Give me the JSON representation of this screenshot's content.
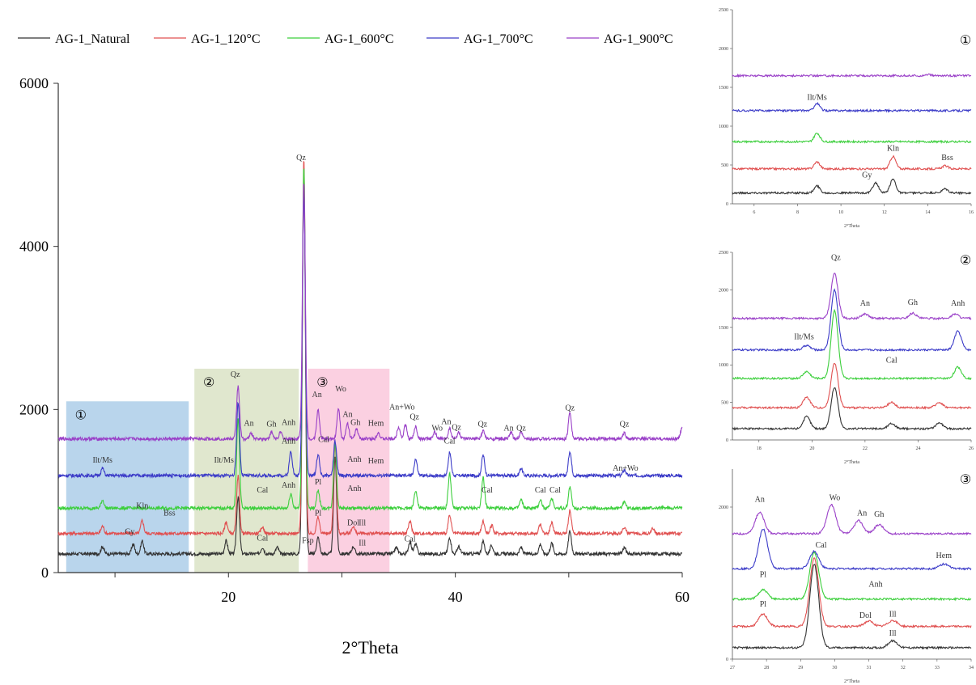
{
  "chart_data": [
    {
      "id": "main",
      "type": "line",
      "xlabel": "2°Theta",
      "ylabel": "",
      "xlim": [
        5,
        60
      ],
      "ylim": [
        0,
        6000
      ],
      "xticks": [
        20,
        40,
        60
      ],
      "yticks": [
        0,
        2000,
        4000,
        6000
      ],
      "legend_position": "top",
      "series": [
        {
          "name": "AG-1_Natural",
          "color": "#333333",
          "baseline": 230
        },
        {
          "name": "AG-1_120°C",
          "color": "#e05050",
          "baseline": 480
        },
        {
          "name": "AG-1_600°C",
          "color": "#3ccf3c",
          "baseline": 790
        },
        {
          "name": "AG-1_700°C",
          "color": "#3c3cc8",
          "baseline": 1190
        },
        {
          "name": "AG-1_900°C",
          "color": "#9a40c8",
          "baseline": 1640
        }
      ],
      "peaks": {
        "AG-1_Natural": [
          [
            8.9,
            90
          ],
          [
            11.6,
            120
          ],
          [
            12.4,
            160
          ],
          [
            19.8,
            160
          ],
          [
            20.85,
            700
          ],
          [
            23.0,
            80
          ],
          [
            24.3,
            80
          ],
          [
            26.65,
            4650
          ],
          [
            27.9,
            200
          ],
          [
            29.4,
            1200
          ],
          [
            31.0,
            90
          ],
          [
            34.8,
            80
          ],
          [
            36.0,
            150
          ],
          [
            36.5,
            120
          ],
          [
            39.5,
            200
          ],
          [
            40.3,
            90
          ],
          [
            42.45,
            150
          ],
          [
            43.2,
            100
          ],
          [
            45.8,
            80
          ],
          [
            47.5,
            120
          ],
          [
            48.5,
            130
          ],
          [
            50.1,
            280
          ],
          [
            54.9,
            80
          ]
        ],
        "AG-1_120°C": [
          [
            8.9,
            90
          ],
          [
            12.4,
            160
          ],
          [
            19.8,
            140
          ],
          [
            20.85,
            700
          ],
          [
            23.0,
            80
          ],
          [
            26.65,
            4600
          ],
          [
            27.9,
            200
          ],
          [
            29.4,
            1100
          ],
          [
            31.0,
            90
          ],
          [
            36.0,
            150
          ],
          [
            39.5,
            220
          ],
          [
            42.45,
            150
          ],
          [
            43.2,
            100
          ],
          [
            47.5,
            110
          ],
          [
            48.5,
            130
          ],
          [
            50.1,
            280
          ],
          [
            54.9,
            80
          ],
          [
            57.4,
            70
          ]
        ],
        "AG-1_600°C": [
          [
            8.9,
            100
          ],
          [
            20.85,
            1100
          ],
          [
            25.5,
            180
          ],
          [
            26.65,
            4200
          ],
          [
            27.9,
            220
          ],
          [
            29.4,
            800
          ],
          [
            36.5,
            220
          ],
          [
            39.5,
            420
          ],
          [
            42.45,
            380
          ],
          [
            45.8,
            100
          ],
          [
            47.5,
            100
          ],
          [
            48.5,
            120
          ],
          [
            50.1,
            260
          ],
          [
            54.9,
            80
          ]
        ],
        "AG-1_700°C": [
          [
            8.9,
            90
          ],
          [
            20.85,
            900
          ],
          [
            25.5,
            300
          ],
          [
            26.65,
            3500
          ],
          [
            27.9,
            260
          ],
          [
            29.4,
            420
          ],
          [
            36.5,
            200
          ],
          [
            39.5,
            280
          ],
          [
            42.45,
            250
          ],
          [
            45.8,
            90
          ],
          [
            50.1,
            300
          ],
          [
            54.9,
            70
          ]
        ],
        "AG-1_900°C": [
          [
            20.85,
            650
          ],
          [
            22.0,
            70
          ],
          [
            23.8,
            80
          ],
          [
            24.6,
            80
          ],
          [
            26.65,
            3150
          ],
          [
            27.9,
            350
          ],
          [
            29.7,
            380
          ],
          [
            30.5,
            190
          ],
          [
            31.3,
            120
          ],
          [
            33.2,
            80
          ],
          [
            35.0,
            150
          ],
          [
            35.6,
            170
          ],
          [
            36.5,
            150
          ],
          [
            38.2,
            80
          ],
          [
            39.5,
            130
          ],
          [
            40.3,
            80
          ],
          [
            42.45,
            100
          ],
          [
            44.9,
            80
          ],
          [
            45.8,
            80
          ],
          [
            50.1,
            330
          ],
          [
            54.9,
            70
          ],
          [
            60.0,
            150
          ]
        ]
      },
      "shaded_regions": [
        {
          "label": "①",
          "x": [
            5.7,
            16.5
          ],
          "y": [
            0,
            2100
          ],
          "color": "#7fb3dc"
        },
        {
          "label": "②",
          "x": [
            17.0,
            26.2
          ],
          "y": [
            0,
            2500
          ],
          "color": "#c7d3a6"
        },
        {
          "label": "③",
          "x": [
            27.0,
            34.2
          ],
          "y": [
            0,
            2500
          ],
          "color": "#f7a9c8"
        }
      ],
      "annotations": [
        {
          "text": "Qz",
          "x": 26.4,
          "y": 5060
        },
        {
          "text": "Qz",
          "x": 20.6,
          "y": 2400
        },
        {
          "text": "An",
          "x": 21.8,
          "y": 1800
        },
        {
          "text": "Gh",
          "x": 23.8,
          "y": 1790
        },
        {
          "text": "Anh",
          "x": 25.3,
          "y": 1810
        },
        {
          "text": "An",
          "x": 27.8,
          "y": 2150
        },
        {
          "text": "Wo",
          "x": 29.9,
          "y": 2220
        },
        {
          "text": "An",
          "x": 30.5,
          "y": 1910
        },
        {
          "text": "Gh",
          "x": 31.2,
          "y": 1810
        },
        {
          "text": "Hem",
          "x": 33.0,
          "y": 1800
        },
        {
          "text": "An+Wo",
          "x": 35.3,
          "y": 2000
        },
        {
          "text": "Qz",
          "x": 36.4,
          "y": 1880
        },
        {
          "text": "Wo",
          "x": 38.4,
          "y": 1740
        },
        {
          "text": "An",
          "x": 39.2,
          "y": 1820
        },
        {
          "text": "Qz",
          "x": 40.1,
          "y": 1750
        },
        {
          "text": "Qz",
          "x": 42.4,
          "y": 1790
        },
        {
          "text": "An",
          "x": 44.7,
          "y": 1740
        },
        {
          "text": "Qz",
          "x": 45.8,
          "y": 1740
        },
        {
          "text": "Qz",
          "x": 50.1,
          "y": 1990
        },
        {
          "text": "Qz",
          "x": 54.9,
          "y": 1790
        },
        {
          "text": "Ilt/Ms",
          "x": 8.9,
          "y": 1350
        },
        {
          "text": "Ilt/Ms",
          "x": 19.6,
          "y": 1350
        },
        {
          "text": "Anh",
          "x": 25.3,
          "y": 1580
        },
        {
          "text": "Cal",
          "x": 28.4,
          "y": 1600
        },
        {
          "text": "Anh",
          "x": 31.1,
          "y": 1360
        },
        {
          "text": "Hem",
          "x": 33.0,
          "y": 1340
        },
        {
          "text": "Cal",
          "x": 39.5,
          "y": 1580
        },
        {
          "text": "An+Wo",
          "x": 55.0,
          "y": 1250
        },
        {
          "text": "Cal",
          "x": 23.0,
          "y": 980
        },
        {
          "text": "Anh",
          "x": 25.3,
          "y": 1040
        },
        {
          "text": "Pl",
          "x": 27.9,
          "y": 1080
        },
        {
          "text": "Anh",
          "x": 31.1,
          "y": 1000
        },
        {
          "text": "Cal",
          "x": 42.8,
          "y": 980
        },
        {
          "text": "Cal",
          "x": 47.5,
          "y": 980
        },
        {
          "text": "Cal",
          "x": 48.8,
          "y": 980
        },
        {
          "text": "Kln",
          "x": 12.4,
          "y": 790
        },
        {
          "text": "Bss",
          "x": 14.8,
          "y": 700
        },
        {
          "text": "Pl",
          "x": 27.9,
          "y": 700
        },
        {
          "text": "Dol",
          "x": 31.0,
          "y": 580
        },
        {
          "text": "Ill",
          "x": 31.8,
          "y": 580
        },
        {
          "text": "Gy",
          "x": 11.3,
          "y": 470
        },
        {
          "text": "Cal",
          "x": 23.0,
          "y": 390
        },
        {
          "text": "Fsp",
          "x": 27.0,
          "y": 360
        },
        {
          "text": "Ill",
          "x": 31.8,
          "y": 330
        },
        {
          "text": "Cal",
          "x": 36.0,
          "y": 380
        }
      ]
    },
    {
      "id": "inset-1",
      "type": "line",
      "label": "①",
      "xlabel": "2°Theta",
      "xlim": [
        5,
        16
      ],
      "ylim": [
        0,
        2500
      ],
      "xticks": [
        6,
        8,
        10,
        12,
        14,
        16
      ],
      "yticks": [
        0,
        500,
        1000,
        1500,
        2000,
        2500
      ],
      "series_baselines": [
        140,
        450,
        800,
        1200,
        1650
      ],
      "peaks": {
        "AG-1_Natural": [
          [
            8.9,
            90
          ],
          [
            11.6,
            130
          ],
          [
            12.4,
            180
          ],
          [
            14.8,
            50
          ]
        ],
        "AG-1_120°C": [
          [
            8.9,
            90
          ],
          [
            12.4,
            160
          ],
          [
            14.8,
            40
          ]
        ],
        "AG-1_600°C": [
          [
            8.9,
            110
          ]
        ],
        "AG-1_700°C": [
          [
            8.9,
            90
          ]
        ],
        "AG-1_900°C": [
          [
            14.0,
            15
          ]
        ]
      },
      "annotations": [
        {
          "text": "Ilt/Ms",
          "x": 8.9,
          "y": 1340
        },
        {
          "text": "Kln",
          "x": 12.4,
          "y": 680
        },
        {
          "text": "Bss",
          "x": 14.9,
          "y": 560
        },
        {
          "text": "Gy",
          "x": 11.2,
          "y": 340
        }
      ]
    },
    {
      "id": "inset-2",
      "type": "line",
      "label": "②",
      "xlabel": "2°Theta",
      "xlim": [
        17,
        26
      ],
      "ylim": [
        0,
        2500
      ],
      "xticks": [
        18,
        20,
        22,
        24,
        26
      ],
      "yticks": [
        0,
        500,
        1000,
        1500,
        2000,
        2500
      ],
      "series_baselines": [
        150,
        430,
        820,
        1200,
        1620
      ],
      "peaks": {
        "AG-1_Natural": [
          [
            19.8,
            160
          ],
          [
            20.85,
            550
          ],
          [
            23.0,
            70
          ],
          [
            24.8,
            80
          ]
        ],
        "AG-1_120°C": [
          [
            19.8,
            140
          ],
          [
            20.85,
            600
          ],
          [
            23.0,
            70
          ],
          [
            24.8,
            70
          ]
        ],
        "AG-1_600°C": [
          [
            19.8,
            90
          ],
          [
            20.85,
            900
          ],
          [
            25.5,
            150
          ]
        ],
        "AG-1_700°C": [
          [
            19.8,
            60
          ],
          [
            20.85,
            800
          ],
          [
            25.5,
            250
          ]
        ],
        "AG-1_900°C": [
          [
            20.85,
            600
          ],
          [
            22.0,
            60
          ],
          [
            23.8,
            70
          ],
          [
            25.4,
            60
          ]
        ]
      },
      "annotations": [
        {
          "text": "Qz",
          "x": 20.9,
          "y": 2400
        },
        {
          "text": "An",
          "x": 22.0,
          "y": 1790
        },
        {
          "text": "Gh",
          "x": 23.8,
          "y": 1800
        },
        {
          "text": "Anh",
          "x": 25.5,
          "y": 1790
        },
        {
          "text": "Ilt/Ms",
          "x": 19.7,
          "y": 1340
        },
        {
          "text": "Cal",
          "x": 23.0,
          "y": 1030
        }
      ]
    },
    {
      "id": "inset-3",
      "type": "line",
      "label": "③",
      "xlabel": "2°Theta",
      "xlim": [
        27,
        34
      ],
      "ylim": [
        0,
        2500
      ],
      "xticks": [
        27,
        28,
        29,
        30,
        31,
        32,
        33,
        34
      ],
      "yticks": [
        0,
        2000
      ],
      "series_baselines": [
        150,
        430,
        790,
        1190,
        1650
      ],
      "peaks": {
        "AG-1_Natural": [
          [
            29.4,
            1100
          ],
          [
            31.7,
            90
          ]
        ],
        "AG-1_120°C": [
          [
            27.9,
            160
          ],
          [
            29.4,
            900
          ],
          [
            31.0,
            70
          ],
          [
            31.7,
            80
          ]
        ],
        "AG-1_600°C": [
          [
            27.9,
            120
          ],
          [
            29.4,
            620
          ]
        ],
        "AG-1_700°C": [
          [
            27.9,
            520
          ],
          [
            29.4,
            230
          ],
          [
            33.2,
            60
          ]
        ],
        "AG-1_900°C": [
          [
            27.8,
            280
          ],
          [
            29.9,
            380
          ],
          [
            30.7,
            170
          ],
          [
            31.3,
            120
          ]
        ]
      },
      "annotations": [
        {
          "text": "An",
          "x": 27.8,
          "y": 2070
        },
        {
          "text": "Wo",
          "x": 30.0,
          "y": 2090
        },
        {
          "text": "An",
          "x": 30.8,
          "y": 1890
        },
        {
          "text": "Gh",
          "x": 31.3,
          "y": 1870
        },
        {
          "text": "Cal",
          "x": 29.6,
          "y": 1470
        },
        {
          "text": "Hem",
          "x": 33.2,
          "y": 1330
        },
        {
          "text": "Pl",
          "x": 27.9,
          "y": 1080
        },
        {
          "text": "Anh",
          "x": 31.2,
          "y": 950
        },
        {
          "text": "Pl",
          "x": 27.9,
          "y": 690
        },
        {
          "text": "Dol",
          "x": 30.9,
          "y": 540
        },
        {
          "text": "Ill",
          "x": 31.7,
          "y": 560
        },
        {
          "text": "Ill",
          "x": 31.7,
          "y": 310
        }
      ]
    }
  ]
}
